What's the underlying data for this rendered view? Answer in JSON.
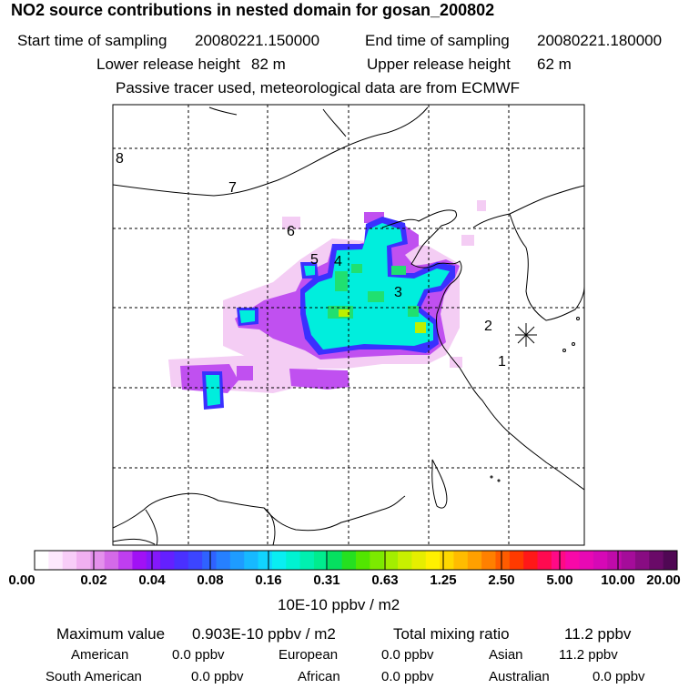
{
  "title": "NO2 source contributions in nested domain for gosan_200802",
  "sampling": {
    "start_label": "Start time of sampling",
    "start_value": "20080221.150000",
    "end_label": "End time of sampling",
    "end_value": "20080221.180000"
  },
  "release": {
    "lower_label": "Lower release height",
    "lower_value": "82 m",
    "upper_label": "Upper release height",
    "upper_value": "62 m"
  },
  "note": "Passive tracer used, meteorological data are from ECMWF",
  "map": {
    "path_labels": [
      "1",
      "2",
      "3",
      "4",
      "5",
      "6",
      "7",
      "8"
    ],
    "receptor": "gosan"
  },
  "colorbar": {
    "ticks": [
      "0.00",
      "0.02",
      "0.04",
      "0.08",
      "0.16",
      "0.31",
      "0.63",
      "1.25",
      "2.50",
      "5.00",
      "10.00",
      "20.00"
    ],
    "unit": "10E-10 ppbv / m2",
    "colors": [
      "#ffffff",
      "#fde8fd",
      "#f8cdf8",
      "#f1b0f1",
      "#e490ec",
      "#d46ae8",
      "#bf3ef0",
      "#a111f5",
      "#8418fa",
      "#6420ff",
      "#4a30ff",
      "#3c45ff",
      "#2f62ff",
      "#2680ff",
      "#1e9cff",
      "#17b9ff",
      "#11d4ff",
      "#09eef2",
      "#00f2d2",
      "#00f0b0",
      "#00ec8e",
      "#05e060",
      "#25e020",
      "#52e600",
      "#7cea00",
      "#a3ee00",
      "#c8f000",
      "#e6ee00",
      "#fff000",
      "#ffd800",
      "#ffbc00",
      "#ffa000",
      "#ff8000",
      "#ff5c00",
      "#ff3a00",
      "#ff1818",
      "#ff0a50",
      "#ff0a86",
      "#f808a8",
      "#e808b4",
      "#d608b6",
      "#c00aaa",
      "#a50c9a",
      "#880c82",
      "#6a0a68",
      "#500854"
    ]
  },
  "summary": {
    "max_label": "Maximum value",
    "max_value": "0.903E-10 ppbv / m2",
    "total_label": "Total mixing ratio",
    "total_value": "11.2 ppbv",
    "american_label": "American",
    "american_value": "0.0 ppbv",
    "european_label": "European",
    "european_value": "0.0 ppbv",
    "asian_label": "Asian",
    "asian_value": "11.2 ppbv",
    "south_american_label": "South American",
    "south_american_value": "0.0 ppbv",
    "african_label": "African",
    "african_value": "0.0 ppbv",
    "australian_label": "Australian",
    "australian_value": "0.0 ppbv"
  }
}
